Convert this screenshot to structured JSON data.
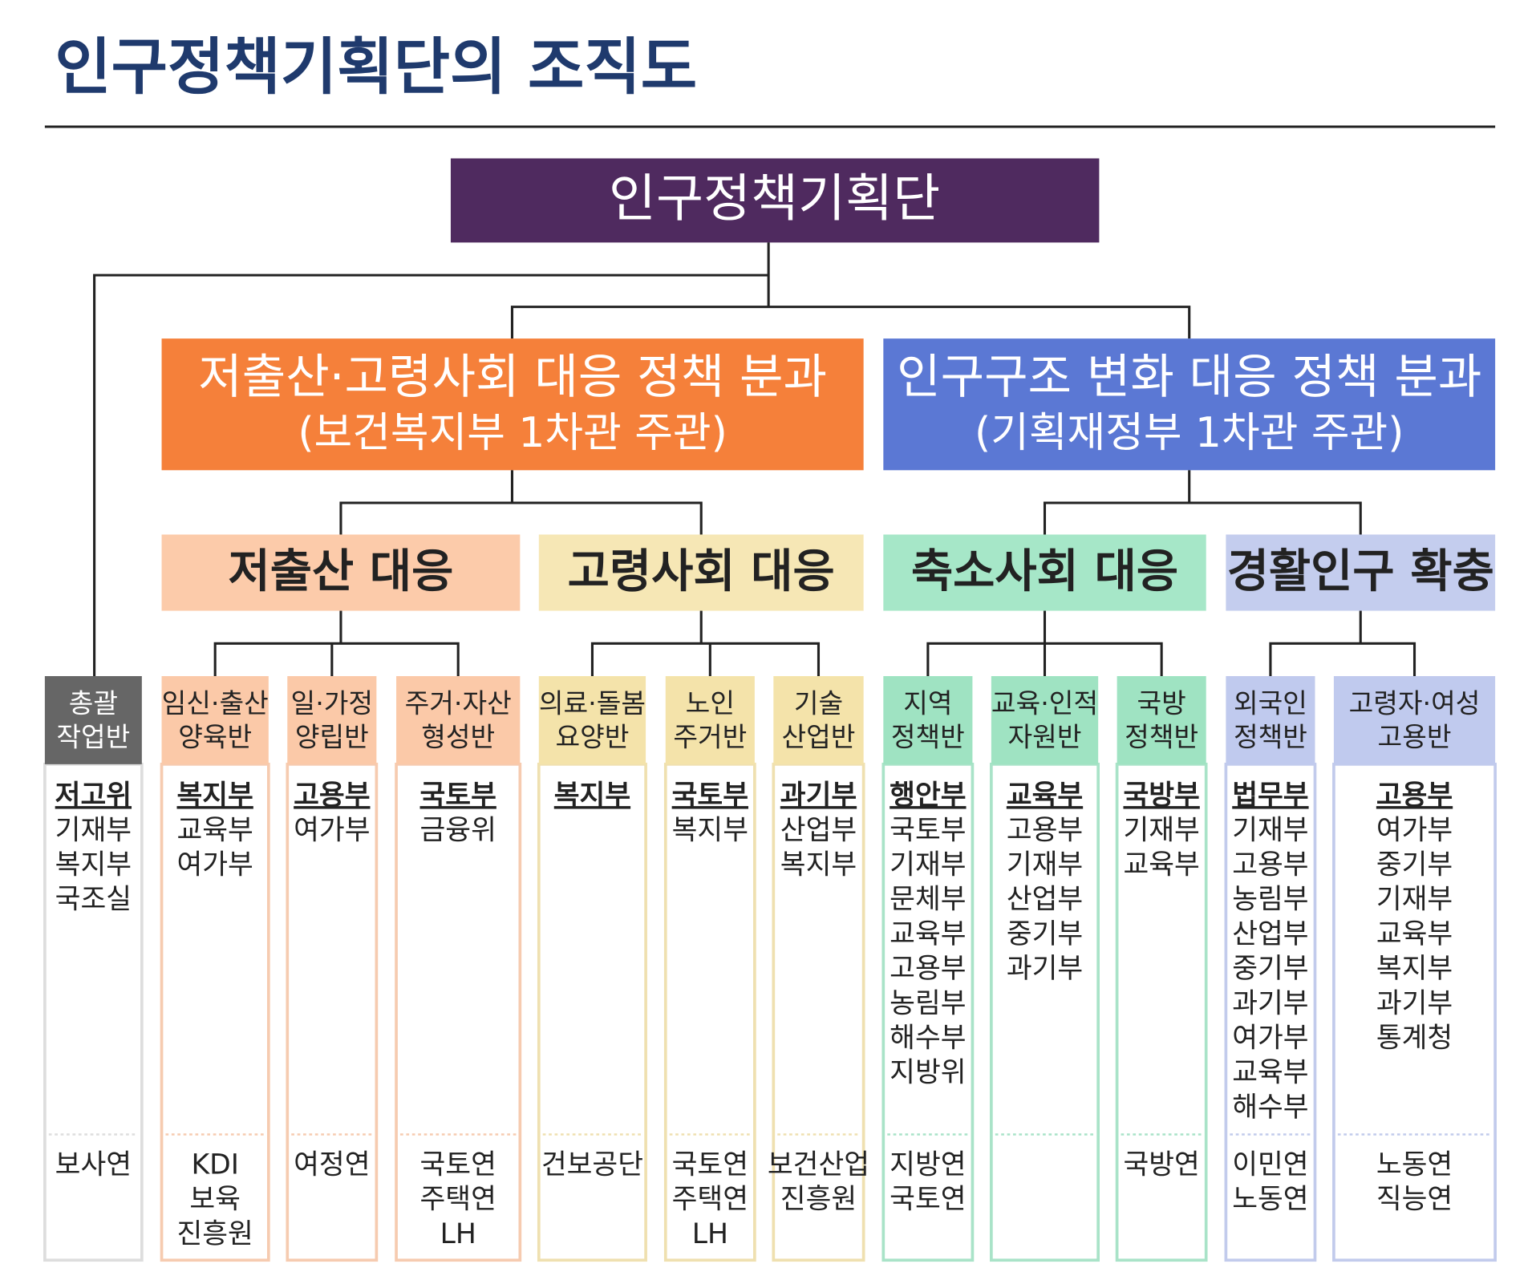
{
  "title": "인구정책기획단의 조직도",
  "root": "인구정책기획단",
  "coordinator": {
    "name": [
      "총괄",
      "작업반"
    ],
    "lead": "저고위",
    "members": [
      "기재부",
      "복지부",
      "국조실"
    ],
    "institutes": [
      "보사연"
    ]
  },
  "divisions": [
    {
      "name": "저출산·고령사회 대응 정책 분과",
      "sub": "(보건복지부 1차관 주관)",
      "groups": [
        {
          "name": "저출산 대응",
          "teams": [
            {
              "name": [
                "임신·출산",
                "양육반"
              ],
              "lead": "복지부",
              "members": [
                "교육부",
                "여가부"
              ],
              "institutes": [
                "KDI",
                "보육",
                "진흥원"
              ]
            },
            {
              "name": [
                "일·가정",
                "양립반"
              ],
              "lead": "고용부",
              "members": [
                "여가부"
              ],
              "institutes": [
                "여정연"
              ]
            },
            {
              "name": [
                "주거·자산",
                "형성반"
              ],
              "lead": "국토부",
              "members": [
                "금융위"
              ],
              "institutes": [
                "국토연",
                "주택연",
                "LH"
              ]
            }
          ]
        },
        {
          "name": "고령사회 대응",
          "teams": [
            {
              "name": [
                "의료·돌봄",
                "요양반"
              ],
              "lead": "복지부",
              "members": [],
              "institutes": [
                "건보공단"
              ]
            },
            {
              "name": [
                "노인",
                "주거반"
              ],
              "lead": "국토부",
              "members": [
                "복지부"
              ],
              "institutes": [
                "국토연",
                "주택연",
                "LH"
              ]
            },
            {
              "name": [
                "기술",
                "산업반"
              ],
              "lead": "과기부",
              "members": [
                "산업부",
                "복지부"
              ],
              "institutes": [
                "보건산업",
                "진흥원"
              ]
            }
          ]
        }
      ]
    },
    {
      "name": "인구구조 변화 대응 정책 분과",
      "sub": "(기획재정부 1차관 주관)",
      "groups": [
        {
          "name": "축소사회 대응",
          "teams": [
            {
              "name": [
                "지역",
                "정책반"
              ],
              "lead": "행안부",
              "members": [
                "국토부",
                "기재부",
                "문체부",
                "교육부",
                "고용부",
                "농림부",
                "해수부",
                "지방위"
              ],
              "institutes": [
                "지방연",
                "국토연"
              ]
            },
            {
              "name": [
                "교육·인적",
                "자원반"
              ],
              "lead": "교육부",
              "members": [
                "고용부",
                "기재부",
                "산업부",
                "중기부",
                "과기부"
              ],
              "institutes": []
            },
            {
              "name": [
                "국방",
                "정책반"
              ],
              "lead": "국방부",
              "members": [
                "기재부",
                "교육부"
              ],
              "institutes": [
                "국방연"
              ]
            }
          ]
        },
        {
          "name": "경활인구 확충",
          "teams": [
            {
              "name": [
                "외국인",
                "정책반"
              ],
              "lead": "법무부",
              "members": [
                "기재부",
                "고용부",
                "농림부",
                "산업부",
                "중기부",
                "과기부",
                "여가부",
                "교육부",
                "해수부"
              ],
              "institutes": [
                "이민연",
                "노동연"
              ]
            },
            {
              "name": [
                "고령자·여성",
                "고용반"
              ],
              "lead": "고용부",
              "members": [
                "여가부",
                "중기부",
                "기재부",
                "교육부",
                "복지부",
                "과기부",
                "통계청"
              ],
              "institutes": [
                "노동연",
                "직능연"
              ]
            }
          ]
        }
      ]
    }
  ]
}
